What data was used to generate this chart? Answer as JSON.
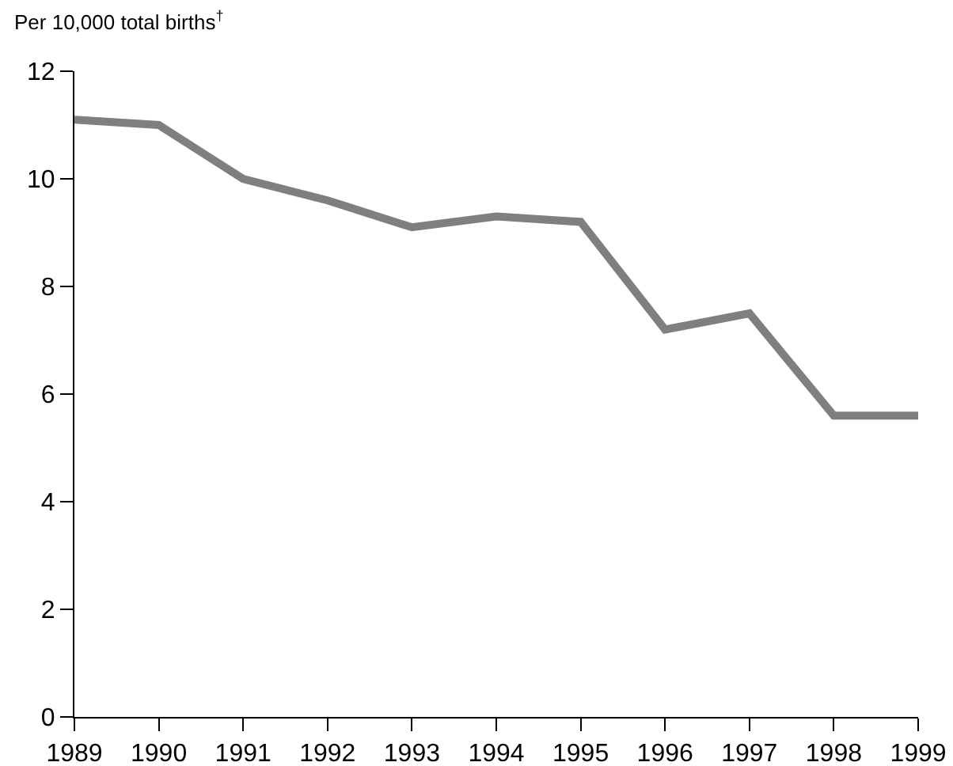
{
  "chart_data": {
    "type": "line",
    "ylabel": "Per 10,000 total births$^{†}$",
    "x": [
      1989,
      1990,
      1991,
      1992,
      1993,
      1994,
      1995,
      1996,
      1997,
      1998,
      1999
    ],
    "series": [
      {
        "color": "#7f7f7f",
        "values": [
          11.1,
          11.0,
          10.0,
          9.6,
          9.1,
          9.3,
          9.2,
          7.2,
          7.5,
          5.6,
          5.6
        ]
      }
    ],
    "xlim": [
      1989,
      1999
    ],
    "xticks": [
      1989,
      1990,
      1991,
      1992,
      1993,
      1994,
      1995,
      1996,
      1997,
      1998,
      1999
    ],
    "ylim": [
      0,
      12
    ],
    "yticks": [
      0,
      2,
      4,
      6,
      8,
      10,
      12
    ],
    "grid": false,
    "marker": "none",
    "line_style": "solid"
  }
}
